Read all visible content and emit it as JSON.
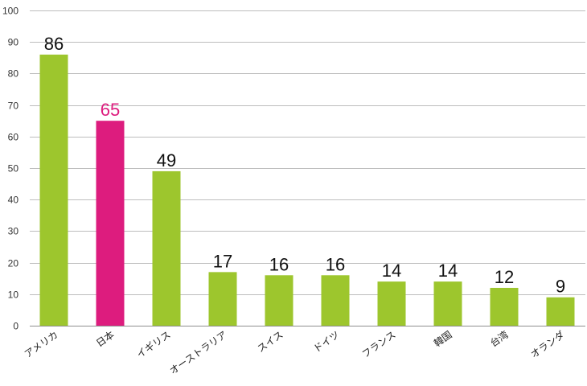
{
  "chart_data": {
    "type": "bar",
    "categories": [
      "アメリカ",
      "日本",
      "イギリス",
      "オーストラリア",
      "スイス",
      "ドイツ",
      "フランス",
      "韓国",
      "台湾",
      "オランダ"
    ],
    "values": [
      86,
      65,
      49,
      17,
      16,
      16,
      14,
      14,
      12,
      9
    ],
    "data_labels": [
      "86",
      "65",
      "49",
      "17",
      "16",
      "16",
      "14",
      "14",
      "12",
      "9"
    ],
    "highlight_index": 1,
    "colors": {
      "bar": "#9dc62d",
      "highlight": "#dd1c7e",
      "label": "#111111",
      "highlight_label": "#dd1c7e",
      "grid": "#bdbdbd"
    },
    "yticks": [
      "0",
      "10",
      "20",
      "30",
      "40",
      "50",
      "60",
      "70",
      "80",
      "90",
      "100"
    ],
    "ylim": [
      0,
      100
    ],
    "grid": true,
    "legend": "none",
    "title": "",
    "xlabel": "",
    "ylabel": ""
  }
}
